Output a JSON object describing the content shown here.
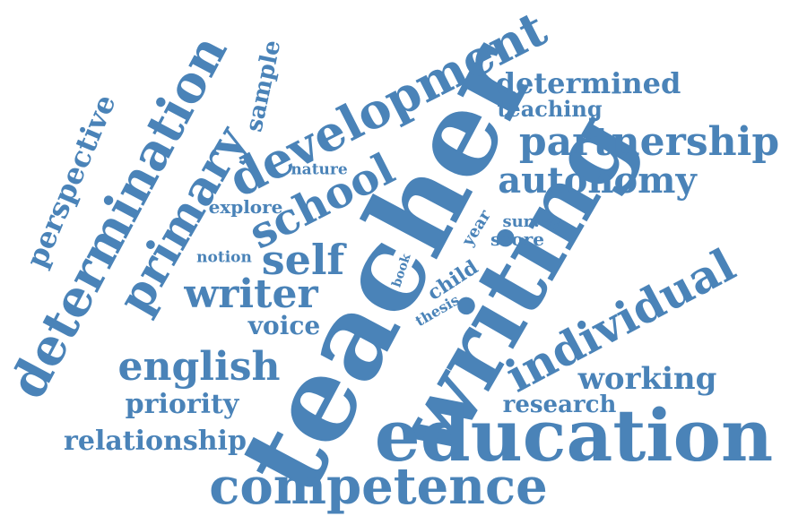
{
  "word_cloud": {
    "color": "#4a83b8",
    "background": "#ffffff",
    "words": {
      "teacher": "teacher",
      "writing": "writing",
      "education": "education",
      "competence": "competence",
      "development": "development",
      "determination": "determination",
      "primary": "primary",
      "individual": "individual",
      "partnership": "partnership",
      "autonomy": "autonomy",
      "school": "school",
      "self": "self",
      "writer": "writer",
      "english": "english",
      "working": "working",
      "determined": "determined",
      "teaching": "teaching",
      "relationship": "relationship",
      "priority": "priority",
      "voice": "voice",
      "research": "research",
      "perspective": "perspective",
      "sample": "sample",
      "explore": "explore",
      "nature": "nature",
      "notion": "notion",
      "survey": "survey",
      "score": "score",
      "year": "year",
      "child": "child",
      "book": "book",
      "thesis": "thesis"
    }
  }
}
